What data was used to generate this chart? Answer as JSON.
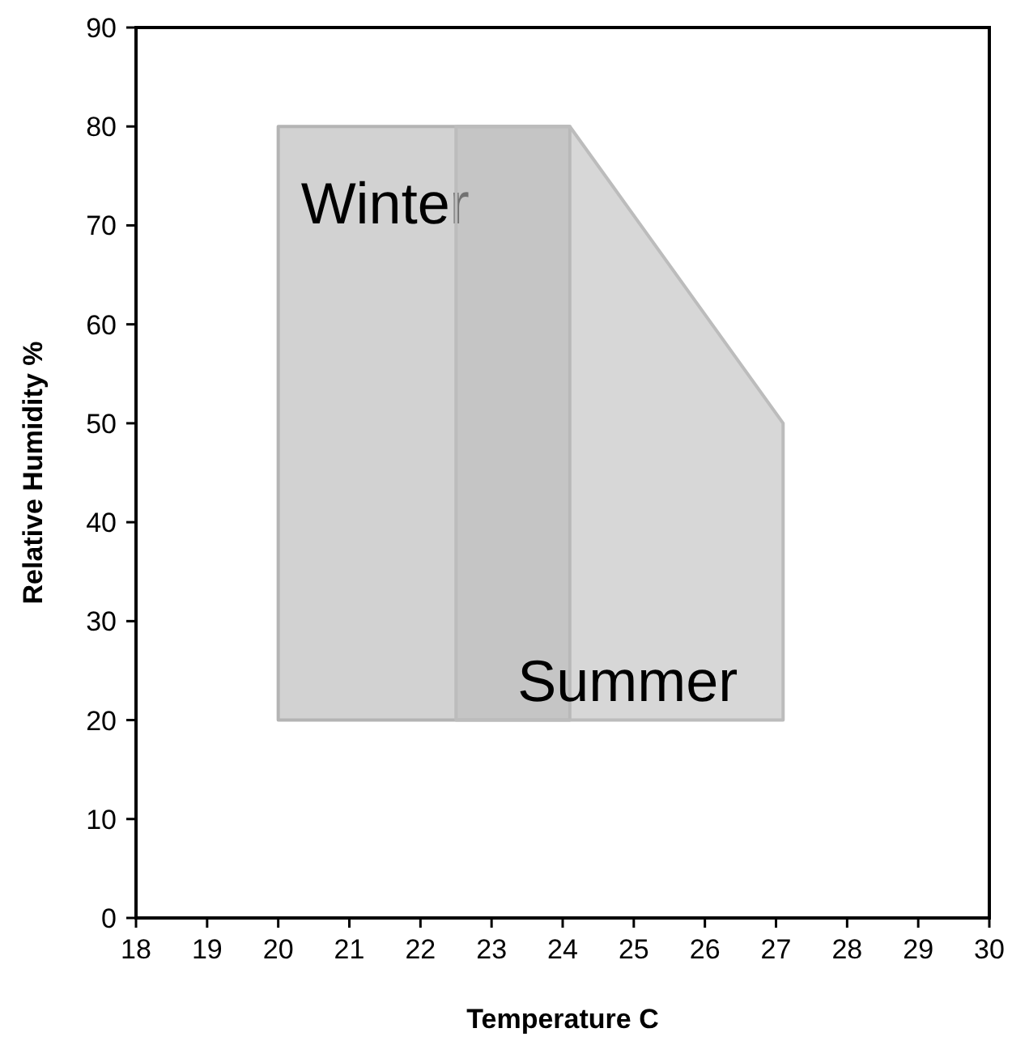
{
  "chart_data": {
    "type": "area",
    "xlabel": "Temperature C",
    "ylabel": "Relative Humidity %",
    "xlim": [
      18,
      30
    ],
    "xticks": [
      18,
      19,
      20,
      21,
      22,
      23,
      24,
      25,
      26,
      27,
      28,
      29,
      30
    ],
    "ylim": [
      0,
      90
    ],
    "yticks": [
      0,
      10,
      20,
      30,
      40,
      50,
      60,
      70,
      80,
      90
    ],
    "grid": false,
    "series": [
      {
        "name": "Winter",
        "color": "#b4b4b4",
        "x": [
          20,
          20,
          24.1,
          24.1
        ],
        "values": [
          20,
          80,
          80,
          20
        ]
      },
      {
        "name": "Summer",
        "color": "#bcbcbc",
        "x": [
          22.5,
          22.5,
          24.1,
          27.1,
          27.1
        ],
        "values": [
          20,
          80,
          80,
          50,
          20
        ]
      }
    ]
  }
}
